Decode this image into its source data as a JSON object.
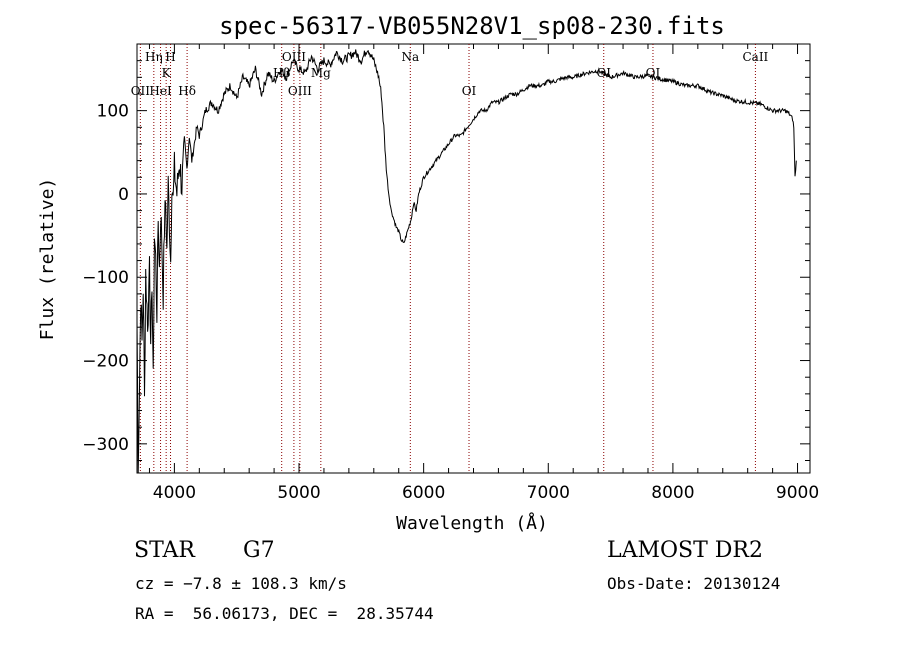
{
  "chart_data": {
    "type": "line",
    "title": "spec-56317-VB055N28V1_sp08-230.fits",
    "xlabel": "Wavelength (Å)",
    "ylabel": "Flux (relative)",
    "xlim": [
      3700,
      9100
    ],
    "ylim": [
      -335,
      180
    ],
    "xticks": [
      4000,
      5000,
      6000,
      7000,
      8000,
      9000
    ],
    "yticks": [
      -300,
      -200,
      -100,
      0,
      100
    ],
    "grid": false,
    "line_color": "#000000",
    "marker_color": "#8b0000",
    "series": [
      {
        "x": [
          3700,
          3710,
          3720,
          3730,
          3740,
          3750,
          3760,
          3770,
          3780,
          3790,
          3800,
          3810,
          3820,
          3830,
          3840,
          3850,
          3860,
          3870,
          3880,
          3890,
          3900,
          3910,
          3920,
          3930,
          3940,
          3950,
          3960,
          3970,
          3980,
          3990,
          4000,
          4020,
          4040,
          4060,
          4080,
          4100,
          4120,
          4140,
          4160,
          4180,
          4200,
          4250,
          4300,
          4350,
          4400,
          4450,
          4500,
          4550,
          4600,
          4650,
          4700,
          4750,
          4800,
          4850,
          4900,
          4950,
          5000,
          5050,
          5100,
          5150,
          5200,
          5250,
          5300,
          5350,
          5400,
          5450,
          5500,
          5550,
          5600,
          5620,
          5640,
          5660,
          5680,
          5700,
          5720,
          5740,
          5760,
          5780,
          5800,
          5820,
          5840,
          5860,
          5880,
          5900,
          5920,
          5940,
          5960,
          5980,
          6000,
          6050,
          6100,
          6150,
          6200,
          6250,
          6300,
          6350,
          6400,
          6450,
          6500,
          6550,
          6600,
          6650,
          6700,
          6750,
          6800,
          6850,
          6900,
          6950,
          7000,
          7050,
          7100,
          7150,
          7200,
          7300,
          7400,
          7500,
          7600,
          7700,
          7800,
          7900,
          8000,
          8100,
          8200,
          8300,
          8400,
          8500,
          8600,
          8700,
          8800,
          8850,
          8900,
          8920,
          8940,
          8960,
          8970,
          8980,
          8990
        ],
        "y": [
          -150,
          -320,
          -230,
          -120,
          -180,
          -110,
          -250,
          -90,
          -140,
          -160,
          -60,
          -200,
          -100,
          -230,
          -50,
          -80,
          -140,
          -30,
          -90,
          -20,
          -60,
          -120,
          -40,
          -10,
          -70,
          10,
          -30,
          -80,
          20,
          -10,
          30,
          0,
          40,
          10,
          50,
          30,
          70,
          40,
          60,
          80,
          70,
          100,
          110,
          100,
          120,
          130,
          115,
          140,
          130,
          150,
          120,
          145,
          135,
          150,
          140,
          160,
          150,
          145,
          165,
          150,
          160,
          155,
          170,
          160,
          165,
          170,
          160,
          175,
          160,
          150,
          140,
          120,
          80,
          30,
          0,
          -20,
          -30,
          -40,
          -45,
          -55,
          -60,
          -50,
          -40,
          -30,
          -10,
          -20,
          0,
          10,
          20,
          30,
          40,
          50,
          60,
          70,
          70,
          80,
          90,
          100,
          100,
          110,
          110,
          115,
          120,
          120,
          125,
          130,
          130,
          130,
          135,
          135,
          138,
          140,
          140,
          145,
          148,
          140,
          145,
          140,
          142,
          138,
          135,
          130,
          130,
          122,
          118,
          112,
          110,
          108,
          100,
          100,
          100,
          98,
          95,
          90,
          80,
          20,
          40
        ]
      }
    ],
    "lines": [
      {
        "label": "OII",
        "x": 3727,
        "row": 3
      },
      {
        "label": "Hη",
        "x": 3835,
        "row": 1
      },
      {
        "label": "HeI",
        "x": 3889,
        "row": 3
      },
      {
        "label": "K",
        "x": 3934,
        "row": 2
      },
      {
        "label": "H",
        "x": 3969,
        "row": 1
      },
      {
        "label": "Hδ",
        "x": 4102,
        "row": 3
      },
      {
        "label": "Hβ",
        "x": 4861,
        "row": 2
      },
      {
        "label": "OIII",
        "x": 4959,
        "row": 1
      },
      {
        "label": "OIII",
        "x": 5007,
        "row": 3
      },
      {
        "label": "Mg",
        "x": 5175,
        "row": 2
      },
      {
        "label": "Na",
        "x": 5893,
        "row": 1
      },
      {
        "label": "OI",
        "x": 6364,
        "row": 3
      },
      {
        "label": "OI",
        "x": 7445,
        "row": 2
      },
      {
        "label": "OI",
        "x": 7840,
        "row": 2
      },
      {
        "label": "CaII",
        "x": 8662,
        "row": 1
      }
    ]
  },
  "info": {
    "class": "STAR",
    "subclass": "G7",
    "survey": "LAMOST DR2",
    "cz": "cz = −7.8 ± 108.3 km/s",
    "obsdate": "Obs-Date: 20130124",
    "radec": "RA =  56.06173, DEC =  28.35744"
  }
}
